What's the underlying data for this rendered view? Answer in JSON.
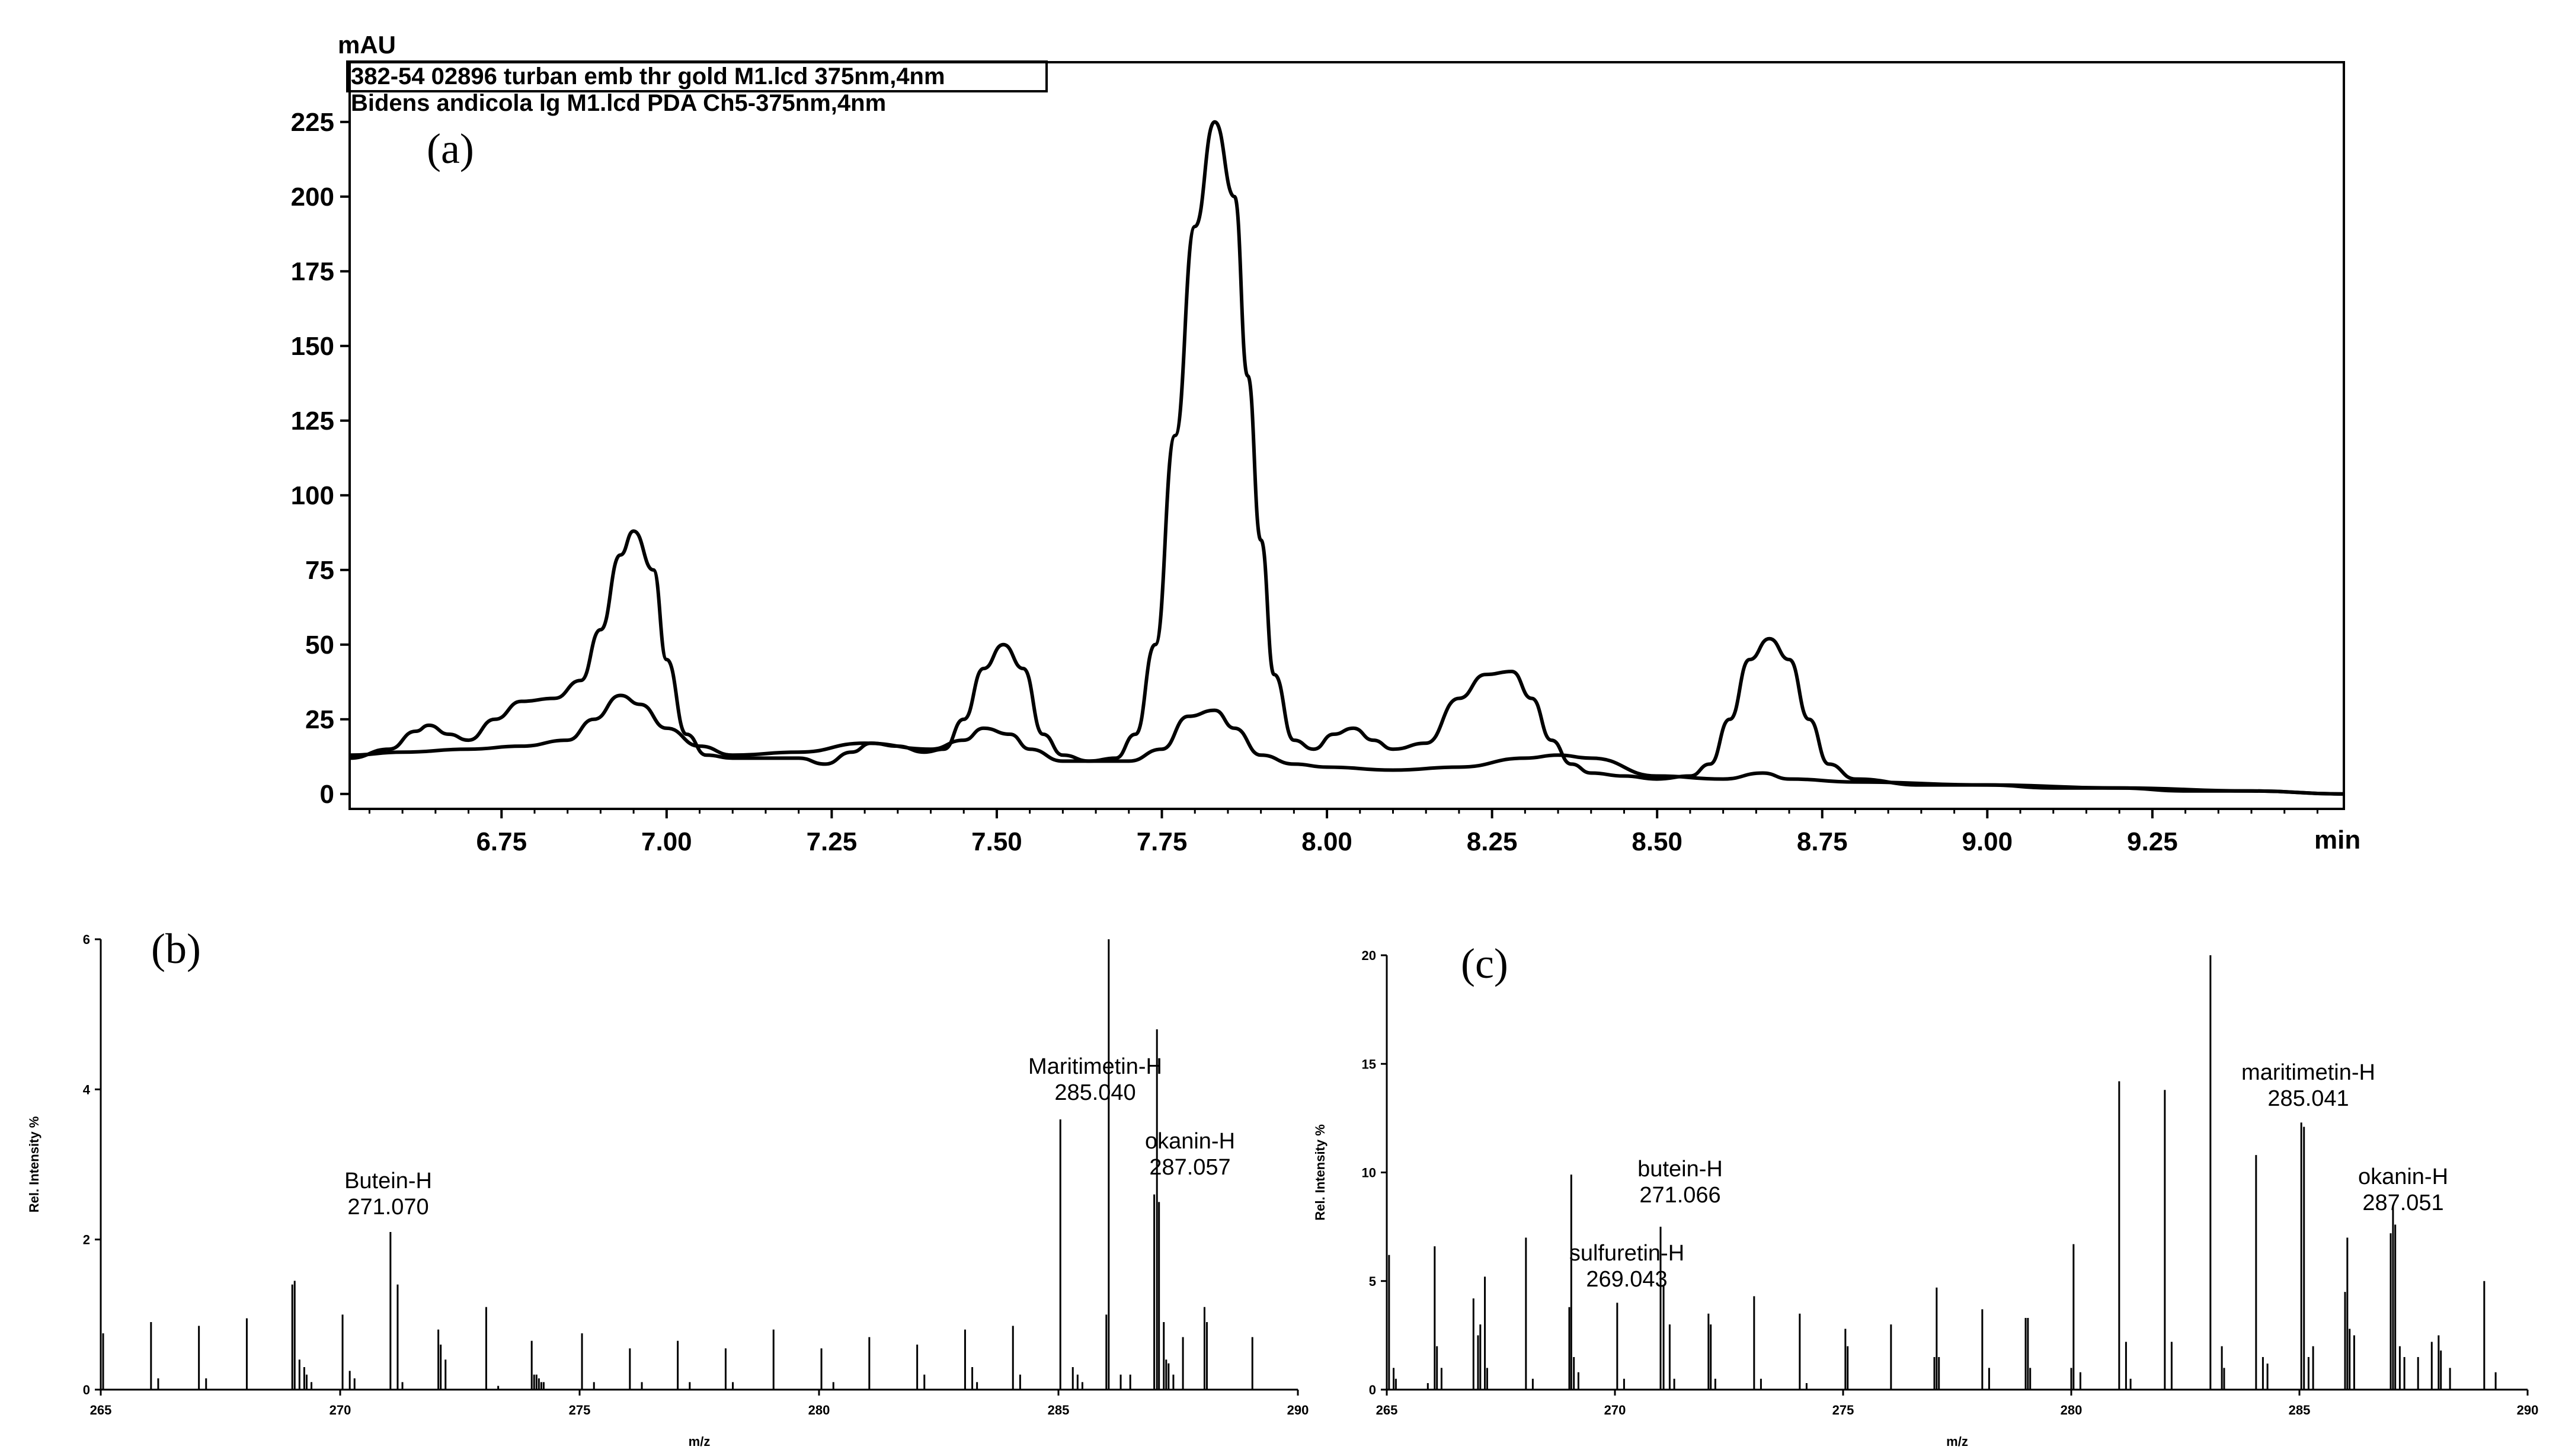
{
  "chart_data": [
    {
      "panel": "(a)",
      "type": "line",
      "y_unit": "mAU",
      "x_unit": "min",
      "legend": [
        "382-54 02896 turban emb thr gold M1.lcd 375nm,4nm",
        "Bidens andicola lg M1.lcd PDA Ch5-375nm,4nm"
      ],
      "xlim": [
        6.52,
        9.54
      ],
      "ylim": [
        -5,
        245
      ],
      "x_ticks": [
        "6.75",
        "7.00",
        "7.25",
        "7.50",
        "7.75",
        "8.00",
        "8.25",
        "8.50",
        "8.75",
        "9.00",
        "9.25"
      ],
      "y_ticks": [
        "0",
        "25",
        "50",
        "75",
        "100",
        "125",
        "150",
        "175",
        "200",
        "225"
      ],
      "series": [
        {
          "x": [
            6.52,
            6.58,
            6.62,
            6.64,
            6.67,
            6.7,
            6.74,
            6.78,
            6.83,
            6.87,
            6.9,
            6.93,
            6.95,
            6.98,
            7.0,
            7.03,
            7.06,
            7.1,
            7.15,
            7.2,
            7.24,
            7.28,
            7.31,
            7.35,
            7.39,
            7.42,
            7.45,
            7.48,
            7.51,
            7.54,
            7.57,
            7.6,
            7.64,
            7.68,
            7.71,
            7.74,
            7.77,
            7.8,
            7.83,
            7.86,
            7.88,
            7.9,
            7.92,
            7.95,
            7.98,
            8.01,
            8.04,
            8.07,
            8.1,
            8.15,
            8.2,
            8.24,
            8.28,
            8.31,
            8.34,
            8.37,
            8.4,
            8.45,
            8.5,
            8.55,
            8.58,
            8.61,
            8.64,
            8.67,
            8.7,
            8.73,
            8.76,
            8.8,
            8.9,
            9.0,
            9.1,
            9.2,
            9.3,
            9.4,
            9.54
          ],
          "y": [
            12,
            15,
            21,
            23,
            20,
            18,
            25,
            31,
            32,
            38,
            55,
            80,
            88,
            75,
            45,
            20,
            13,
            12,
            12,
            12,
            10,
            14,
            17,
            16,
            14,
            15,
            25,
            42,
            50,
            42,
            20,
            13,
            11,
            12,
            20,
            50,
            120,
            190,
            225,
            200,
            140,
            85,
            40,
            18,
            15,
            20,
            22,
            18,
            15,
            17,
            32,
            40,
            41,
            32,
            18,
            10,
            7,
            6,
            5,
            6,
            10,
            25,
            45,
            52,
            45,
            25,
            10,
            5,
            3,
            3,
            2,
            2,
            1,
            1,
            0
          ]
        },
        {
          "x": [
            6.52,
            6.6,
            6.7,
            6.78,
            6.85,
            6.89,
            6.93,
            6.96,
            7.0,
            7.05,
            7.1,
            7.2,
            7.3,
            7.4,
            7.45,
            7.48,
            7.52,
            7.55,
            7.6,
            7.7,
            7.75,
            7.79,
            7.83,
            7.86,
            7.9,
            7.95,
            8.0,
            8.1,
            8.2,
            8.3,
            8.35,
            8.4,
            8.5,
            8.6,
            8.66,
            8.7,
            8.8,
            9.0,
            9.2,
            9.4,
            9.54
          ],
          "y": [
            13,
            14,
            15,
            16,
            18,
            25,
            33,
            30,
            22,
            16,
            13,
            14,
            17,
            15,
            18,
            22,
            20,
            15,
            11,
            11,
            15,
            26,
            28,
            22,
            13,
            10,
            9,
            8,
            9,
            12,
            13,
            12,
            6,
            5,
            7,
            5,
            4,
            3,
            2,
            1,
            0
          ]
        }
      ]
    },
    {
      "panel": "(b)",
      "type": "bar",
      "xlabel": "m/z",
      "ylabel": "Rel. Intensity %",
      "xlim": [
        265,
        290
      ],
      "ylim": [
        0,
        6
      ],
      "x_ticks": [
        "265",
        "270",
        "275",
        "280",
        "285",
        "290"
      ],
      "y_ticks": [
        "0",
        "2",
        "4",
        "6"
      ],
      "peaks": [
        [
          265.05,
          0.75
        ],
        [
          266.05,
          0.9
        ],
        [
          266.2,
          0.15
        ],
        [
          267.05,
          0.85
        ],
        [
          267.2,
          0.15
        ],
        [
          268.05,
          0.95
        ],
        [
          269.0,
          1.4
        ],
        [
          269.05,
          1.45
        ],
        [
          269.15,
          0.4
        ],
        [
          269.25,
          0.3
        ],
        [
          269.3,
          0.2
        ],
        [
          269.4,
          0.1
        ],
        [
          270.05,
          1.0
        ],
        [
          270.2,
          0.25
        ],
        [
          270.3,
          0.15
        ],
        [
          271.05,
          2.1
        ],
        [
          271.2,
          1.4
        ],
        [
          271.3,
          0.1
        ],
        [
          272.05,
          0.8
        ],
        [
          272.1,
          0.6
        ],
        [
          272.2,
          0.4
        ],
        [
          273.05,
          1.1
        ],
        [
          273.3,
          0.05
        ],
        [
          274.0,
          0.65
        ],
        [
          274.05,
          0.2
        ],
        [
          274.1,
          0.2
        ],
        [
          274.15,
          0.15
        ],
        [
          274.2,
          0.1
        ],
        [
          274.25,
          0.1
        ],
        [
          275.05,
          0.75
        ],
        [
          275.3,
          0.1
        ],
        [
          276.05,
          0.55
        ],
        [
          276.3,
          0.1
        ],
        [
          277.05,
          0.65
        ],
        [
          277.3,
          0.1
        ],
        [
          278.05,
          0.55
        ],
        [
          278.2,
          0.1
        ],
        [
          279.05,
          0.8
        ],
        [
          280.05,
          0.55
        ],
        [
          280.3,
          0.1
        ],
        [
          281.05,
          0.7
        ],
        [
          282.05,
          0.6
        ],
        [
          282.2,
          0.2
        ],
        [
          283.05,
          0.8
        ],
        [
          283.2,
          0.3
        ],
        [
          283.3,
          0.1
        ],
        [
          284.05,
          0.85
        ],
        [
          284.2,
          0.2
        ],
        [
          285.04,
          3.6
        ],
        [
          285.3,
          0.3
        ],
        [
          285.4,
          0.2
        ],
        [
          285.5,
          0.1
        ],
        [
          286.0,
          1.0
        ],
        [
          286.05,
          6.0
        ],
        [
          286.3,
          0.2
        ],
        [
          286.5,
          0.2
        ],
        [
          287.0,
          2.6
        ],
        [
          287.057,
          4.8
        ],
        [
          287.1,
          2.5
        ],
        [
          287.2,
          0.9
        ],
        [
          287.25,
          0.4
        ],
        [
          287.3,
          0.35
        ],
        [
          287.4,
          0.2
        ],
        [
          287.6,
          0.7
        ],
        [
          288.05,
          1.1
        ],
        [
          288.1,
          0.9
        ],
        [
          289.05,
          0.7
        ]
      ],
      "annotations": [
        {
          "label": "Butein-H",
          "mz": "271.070"
        },
        {
          "label": "Maritimetin-H",
          "mz": "285.040"
        },
        {
          "label": "okanin-H",
          "mz": "287.057"
        }
      ]
    },
    {
      "panel": "(c)",
      "type": "bar",
      "xlabel": "m/z",
      "ylabel": "Rel. Intensity %",
      "xlim": [
        265,
        290
      ],
      "ylim": [
        0,
        20
      ],
      "x_ticks": [
        "265",
        "270",
        "275",
        "280",
        "285",
        "290"
      ],
      "y_ticks": [
        "0",
        "5",
        "10",
        "15",
        "20"
      ],
      "peaks": [
        [
          265.05,
          6.2
        ],
        [
          265.0,
          1.5
        ],
        [
          265.15,
          1.0
        ],
        [
          265.2,
          0.5
        ],
        [
          265.9,
          0.3
        ],
        [
          266.05,
          6.6
        ],
        [
          266.1,
          2.0
        ],
        [
          266.2,
          1.0
        ],
        [
          266.9,
          4.2
        ],
        [
          267.0,
          2.5
        ],
        [
          267.05,
          3.0
        ],
        [
          267.15,
          5.2
        ],
        [
          267.2,
          1.0
        ],
        [
          268.05,
          7.0
        ],
        [
          268.2,
          0.5
        ],
        [
          269.0,
          3.8
        ],
        [
          269.043,
          9.9
        ],
        [
          269.1,
          1.5
        ],
        [
          269.2,
          0.8
        ],
        [
          270.05,
          4.0
        ],
        [
          270.2,
          0.5
        ],
        [
          271.0,
          7.5
        ],
        [
          271.066,
          4.8
        ],
        [
          271.2,
          3.0
        ],
        [
          271.3,
          0.5
        ],
        [
          272.05,
          3.5
        ],
        [
          272.1,
          3.0
        ],
        [
          272.2,
          0.5
        ],
        [
          273.05,
          4.3
        ],
        [
          273.2,
          0.5
        ],
        [
          274.05,
          3.5
        ],
        [
          274.2,
          0.3
        ],
        [
          275.05,
          2.8
        ],
        [
          275.1,
          2.0
        ],
        [
          276.05,
          3.0
        ],
        [
          277.0,
          1.5
        ],
        [
          277.05,
          4.7
        ],
        [
          277.1,
          1.5
        ],
        [
          278.05,
          3.7
        ],
        [
          278.2,
          1.0
        ],
        [
          279.0,
          3.3
        ],
        [
          279.05,
          3.3
        ],
        [
          279.1,
          1.0
        ],
        [
          280.0,
          1.0
        ],
        [
          280.05,
          6.7
        ],
        [
          280.2,
          0.8
        ],
        [
          281.05,
          14.2
        ],
        [
          281.2,
          2.2
        ],
        [
          281.3,
          0.5
        ],
        [
          282.05,
          13.8
        ],
        [
          282.2,
          2.2
        ],
        [
          283.05,
          20.0
        ],
        [
          283.3,
          2.0
        ],
        [
          283.35,
          1.0
        ],
        [
          284.05,
          10.8
        ],
        [
          284.2,
          1.5
        ],
        [
          284.3,
          1.2
        ],
        [
          285.041,
          12.3
        ],
        [
          285.1,
          12.1
        ],
        [
          285.2,
          1.5
        ],
        [
          285.3,
          2.0
        ],
        [
          286.0,
          4.5
        ],
        [
          286.05,
          7.0
        ],
        [
          286.1,
          2.8
        ],
        [
          286.2,
          2.5
        ],
        [
          287.0,
          7.2
        ],
        [
          287.051,
          8.5
        ],
        [
          287.1,
          7.6
        ],
        [
          287.2,
          2.0
        ],
        [
          287.3,
          1.5
        ],
        [
          287.6,
          1.5
        ],
        [
          287.9,
          2.2
        ],
        [
          288.05,
          2.5
        ],
        [
          288.1,
          1.8
        ],
        [
          288.3,
          1.0
        ],
        [
          289.05,
          5.0
        ],
        [
          289.3,
          0.8
        ]
      ],
      "annotations": [
        {
          "label": "sulfuretin-H",
          "mz": "269.043"
        },
        {
          "label": "butein-H",
          "mz": "271.066"
        },
        {
          "label": "maritimetin-H",
          "mz": "285.041"
        },
        {
          "label": "okanin-H",
          "mz": "287.051"
        }
      ]
    }
  ]
}
